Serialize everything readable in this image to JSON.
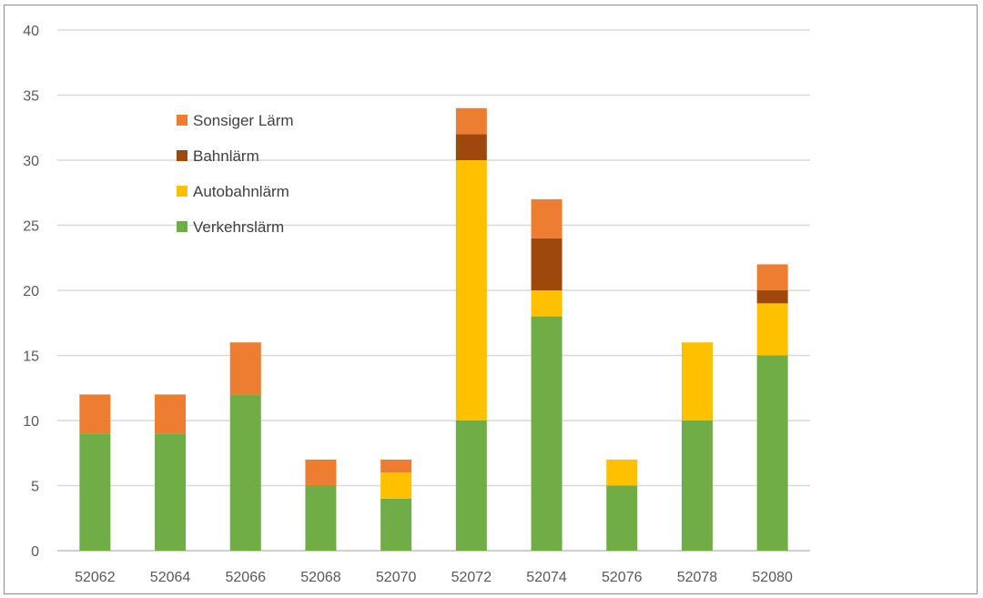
{
  "chart_data": {
    "type": "bar",
    "stacked": true,
    "title": "",
    "xlabel": "",
    "ylabel": "",
    "categories": [
      "52062",
      "52064",
      "52066",
      "52068",
      "52070",
      "52072",
      "52074",
      "52076",
      "52078",
      "52080"
    ],
    "ylim": [
      0,
      40
    ],
    "yticks": [
      "0",
      "5",
      "10",
      "15",
      "20",
      "25",
      "30",
      "35",
      "40"
    ],
    "grid": true,
    "legend_position": "top-left",
    "legend_order": [
      "Sonsiger Lärm",
      "Bahnlärm",
      "Autobahnlärm",
      "Verkehrslärm"
    ],
    "series": [
      {
        "name": "Verkehrslärm",
        "color": "#70ad47",
        "values": [
          9,
          9,
          12,
          5,
          4,
          10,
          18,
          5,
          10,
          15
        ]
      },
      {
        "name": "Autobahnlärm",
        "color": "#ffc000",
        "values": [
          0,
          0,
          0,
          0,
          2,
          20,
          2,
          2,
          6,
          4
        ]
      },
      {
        "name": "Bahnlärm",
        "color": "#9e480e",
        "values": [
          0,
          0,
          0,
          0,
          0,
          2,
          4,
          0,
          0,
          1
        ]
      },
      {
        "name": "Sonsiger Lärm",
        "color": "#ed7d31",
        "values": [
          3,
          3,
          4,
          2,
          1,
          2,
          3,
          0,
          0,
          2
        ]
      }
    ]
  }
}
